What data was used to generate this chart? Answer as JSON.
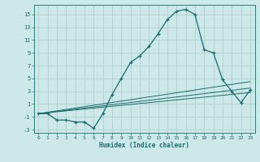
{
  "title": "",
  "xlabel": "Humidex (Indice chaleur)",
  "background_color": "#cde8e8",
  "grid_color": "#aacccc",
  "line_color": "#1a6b6b",
  "xlim": [
    -0.5,
    23.5
  ],
  "ylim": [
    -3.5,
    16.5
  ],
  "xticks": [
    0,
    1,
    2,
    3,
    4,
    5,
    6,
    7,
    8,
    9,
    10,
    11,
    12,
    13,
    14,
    15,
    16,
    17,
    18,
    19,
    20,
    21,
    22,
    23
  ],
  "yticks": [
    -3,
    -1,
    1,
    3,
    5,
    7,
    9,
    11,
    13,
    15
  ],
  "series": [
    [
      0,
      -0.5
    ],
    [
      1,
      -0.5
    ],
    [
      2,
      -1.5
    ],
    [
      3,
      -1.5
    ],
    [
      4,
      -1.8
    ],
    [
      5,
      -1.8
    ],
    [
      6,
      -2.8
    ],
    [
      7,
      -0.5
    ],
    [
      8,
      2.5
    ],
    [
      9,
      5.0
    ],
    [
      10,
      7.5
    ],
    [
      11,
      8.5
    ],
    [
      12,
      10.0
    ],
    [
      13,
      12.0
    ],
    [
      14,
      14.2
    ],
    [
      15,
      15.5
    ],
    [
      16,
      15.8
    ],
    [
      17,
      15.0
    ],
    [
      18,
      9.5
    ],
    [
      19,
      9.0
    ],
    [
      20,
      4.8
    ],
    [
      21,
      3.0
    ],
    [
      22,
      1.2
    ],
    [
      23,
      3.2
    ]
  ],
  "line1": [
    [
      0,
      -0.5
    ],
    [
      23,
      4.5
    ]
  ],
  "line2": [
    [
      0,
      -0.5
    ],
    [
      23,
      3.5
    ]
  ],
  "line3": [
    [
      0,
      -0.5
    ],
    [
      23,
      2.8
    ]
  ]
}
